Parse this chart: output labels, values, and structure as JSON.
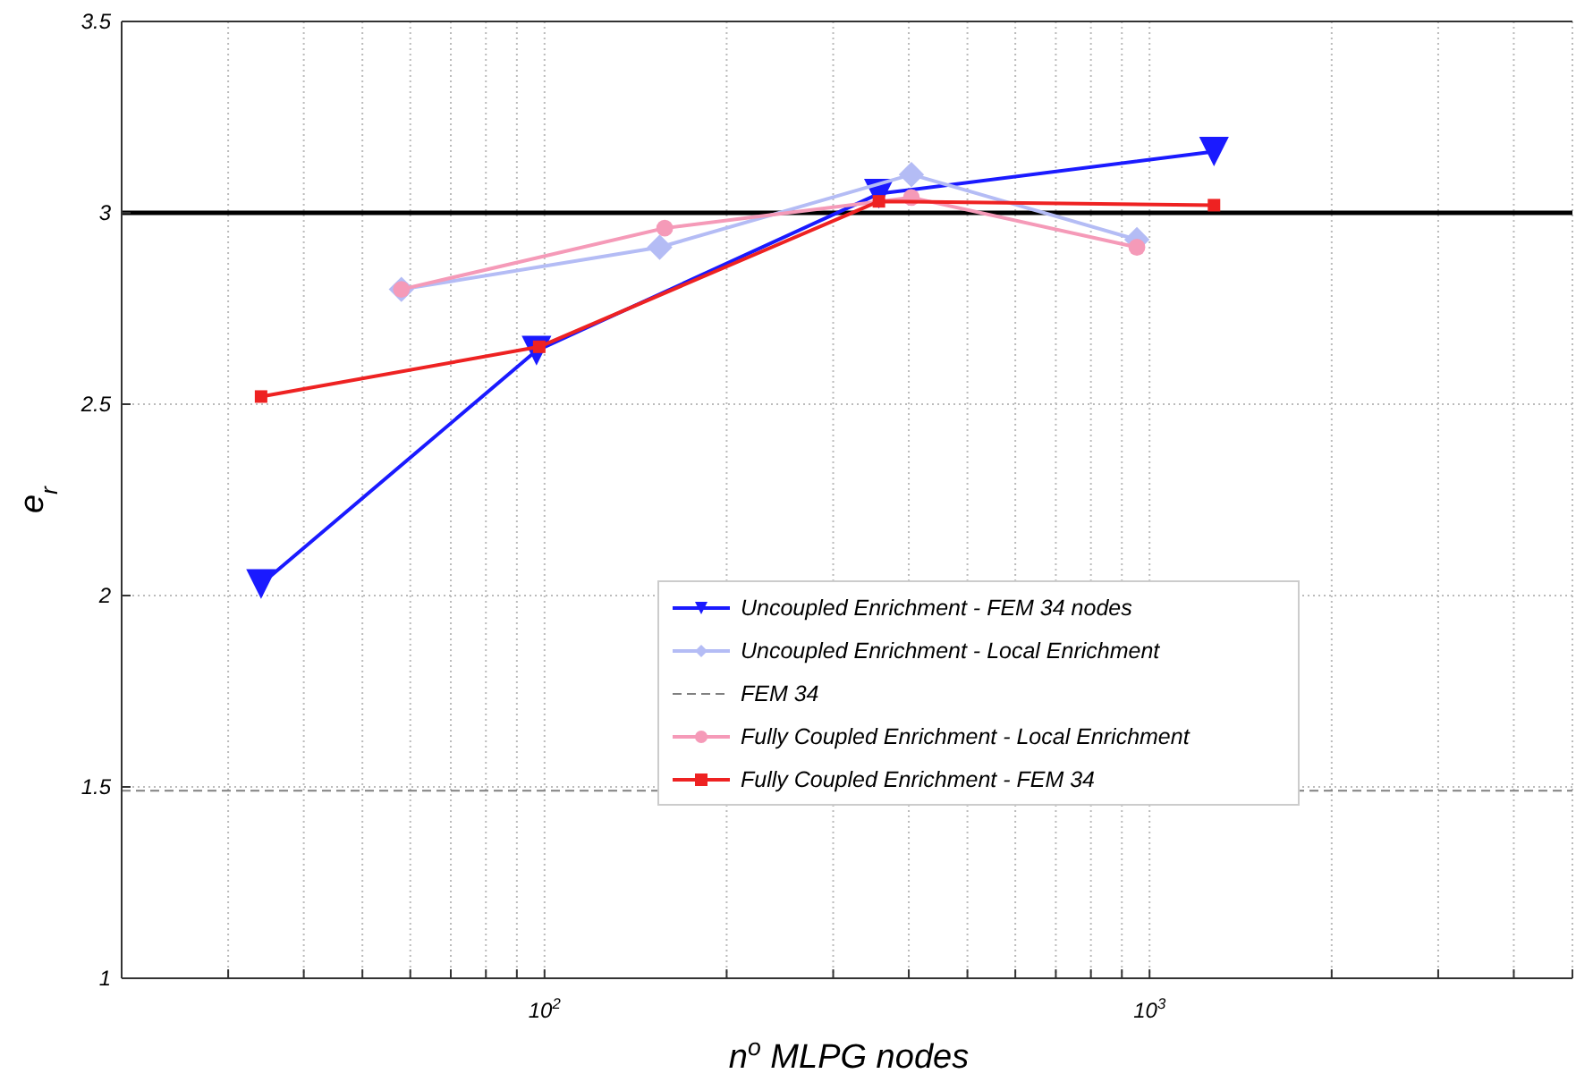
{
  "chart_data": {
    "type": "line",
    "xlabel": "n$^{o}$ MLPG nodes",
    "ylabel": "e$_{r}$",
    "log": "x",
    "xlim": [
      20,
      5000
    ],
    "ylim": [
      1,
      3.5
    ],
    "xticks": [
      {
        "value": 20,
        "label": null
      },
      {
        "value": 30,
        "label": null
      },
      {
        "value": 40,
        "label": null
      },
      {
        "value": 50,
        "label": null
      },
      {
        "value": 60,
        "label": null
      },
      {
        "value": 70,
        "label": null
      },
      {
        "value": 80,
        "label": null
      },
      {
        "value": 90,
        "label": null
      },
      {
        "value": 100,
        "label": "10$^{2}$"
      },
      {
        "value": 200,
        "label": null
      },
      {
        "value": 300,
        "label": null
      },
      {
        "value": 400,
        "label": null
      },
      {
        "value": 500,
        "label": null
      },
      {
        "value": 600,
        "label": null
      },
      {
        "value": 700,
        "label": null
      },
      {
        "value": 800,
        "label": null
      },
      {
        "value": 900,
        "label": null
      },
      {
        "value": 1000,
        "label": "10$^{3}$"
      },
      {
        "value": 2000,
        "label": null
      },
      {
        "value": 3000,
        "label": null
      },
      {
        "value": 4000,
        "label": null
      },
      {
        "value": 5000,
        "label": null
      }
    ],
    "yticks": [
      1,
      1.5,
      2,
      2.5,
      3,
      3.5
    ],
    "grid": true,
    "legend": "bottom right",
    "ref_lines": [
      {
        "axis": "y",
        "value": 3,
        "color": "#000000",
        "line_style": "solid"
      }
    ],
    "series": [
      {
        "name": "Uncoupled Enrichment - FEM 34 nodes",
        "color": "#1a1aff",
        "marker": "triangle",
        "x": [
          34,
          97,
          357,
          1278
        ],
        "values": [
          2.03,
          2.64,
          3.05,
          3.16
        ]
      },
      {
        "name": "Uncoupled Enrichment - Local Enrichment",
        "color": "#b4bcf5",
        "marker": "diamond",
        "x": [
          58,
          155,
          404,
          953
        ],
        "values": [
          2.8,
          2.91,
          3.1,
          2.93
        ]
      },
      {
        "name": "FEM 34",
        "color": "#808080",
        "marker": "none",
        "line_style": "dashed",
        "x": [
          20,
          5000
        ],
        "values": [
          1.49,
          1.49
        ]
      },
      {
        "name": "Fully Coupled Enrichment - Local Enrichment",
        "color": "#f59ab8",
        "marker": "circle",
        "x": [
          58,
          158,
          404,
          953
        ],
        "values": [
          2.8,
          2.96,
          3.04,
          2.91
        ]
      },
      {
        "name": "Fully Coupled Enrichment - FEM 34",
        "color": "#ee2222",
        "marker": "square",
        "x": [
          34,
          98,
          357,
          1278
        ],
        "values": [
          2.52,
          2.65,
          3.03,
          3.02
        ]
      }
    ]
  }
}
